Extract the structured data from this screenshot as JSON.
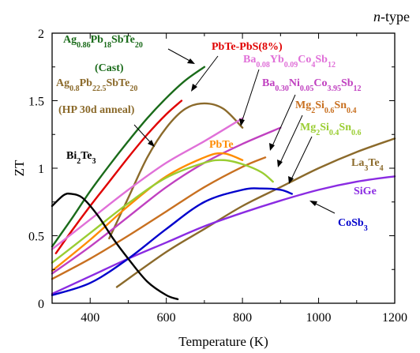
{
  "chart_data": {
    "type": "line",
    "annotation": "n-type",
    "xlabel": "Temperature (K)",
    "ylabel": "ZT",
    "xlim": [
      300,
      1200
    ],
    "ylim": [
      0,
      2
    ],
    "xticks": [
      400,
      600,
      800,
      1000,
      1200
    ],
    "yticks": [
      0,
      0.5,
      1,
      1.5,
      2
    ],
    "grid": false,
    "series": [
      {
        "name": "Ag0.86Pb18SbTe20 (Cast)",
        "color": "#1a6b1a",
        "x": [
          300,
          350,
          400,
          450,
          500,
          550,
          600,
          650,
          700
        ],
        "y": [
          0.42,
          0.62,
          0.83,
          1.02,
          1.2,
          1.37,
          1.52,
          1.65,
          1.75
        ]
      },
      {
        "name": "PbTe-PbS(8%)",
        "color": "#e00000",
        "x": [
          310,
          350,
          400,
          450,
          500,
          550,
          600,
          640
        ],
        "y": [
          0.37,
          0.53,
          0.72,
          0.9,
          1.08,
          1.25,
          1.4,
          1.5
        ]
      },
      {
        "name": "Ag0.8Pb22.5SbTe20 (HP 30d anneal)",
        "color": "#8b6a2b",
        "x": [
          450,
          500,
          550,
          600,
          650,
          700,
          750,
          800
        ],
        "y": [
          0.48,
          0.78,
          1.08,
          1.3,
          1.44,
          1.48,
          1.44,
          1.3
        ]
      },
      {
        "name": "Ba0.08Yb0.09Co4Sb12",
        "color": "#e070d8",
        "x": [
          300,
          400,
          500,
          600,
          700,
          800
        ],
        "y": [
          0.4,
          0.62,
          0.84,
          1.04,
          1.2,
          1.37
        ]
      },
      {
        "name": "Ba0.30Ni0.05Co3.95Sb12",
        "color": "#c040c0",
        "x": [
          300,
          400,
          500,
          600,
          700,
          800,
          900
        ],
        "y": [
          0.22,
          0.42,
          0.64,
          0.86,
          1.04,
          1.18,
          1.3
        ]
      },
      {
        "name": "PbTe",
        "color": "#ff8c00",
        "x": [
          300,
          400,
          500,
          600,
          700,
          750,
          800
        ],
        "y": [
          0.24,
          0.47,
          0.72,
          0.94,
          1.08,
          1.11,
          1.06
        ]
      },
      {
        "name": "Mg2Si0.6Sn0.4",
        "color": "#c87020",
        "x": [
          300,
          400,
          500,
          600,
          700,
          800,
          860
        ],
        "y": [
          0.18,
          0.33,
          0.5,
          0.68,
          0.86,
          1.01,
          1.08
        ]
      },
      {
        "name": "Mg2Si0.4Sn0.6",
        "color": "#9acd32",
        "x": [
          300,
          400,
          500,
          600,
          700,
          750,
          800,
          850,
          880
        ],
        "y": [
          0.3,
          0.52,
          0.74,
          0.93,
          1.04,
          1.06,
          1.03,
          0.97,
          0.9
        ]
      },
      {
        "name": "La3Te4",
        "color": "#8b6a2b",
        "x": [
          470,
          600,
          700,
          800,
          900,
          1000,
          1100,
          1200
        ],
        "y": [
          0.12,
          0.38,
          0.55,
          0.72,
          0.86,
          1.0,
          1.12,
          1.22
        ]
      },
      {
        "name": "SiGe",
        "color": "#8a2be2",
        "x": [
          300,
          400,
          500,
          600,
          700,
          800,
          900,
          1000,
          1100,
          1200
        ],
        "y": [
          0.07,
          0.2,
          0.33,
          0.45,
          0.57,
          0.67,
          0.76,
          0.84,
          0.9,
          0.94
        ]
      },
      {
        "name": "CoSb3",
        "color": "#0000cc",
        "x": [
          300,
          400,
          500,
          600,
          700,
          800,
          850,
          900,
          930
        ],
        "y": [
          0.06,
          0.15,
          0.33,
          0.55,
          0.75,
          0.84,
          0.85,
          0.84,
          0.81
        ]
      },
      {
        "name": "Bi2Te3",
        "color": "#000000",
        "x": [
          300,
          330,
          350,
          380,
          420,
          460,
          500,
          550,
          600,
          630
        ],
        "y": [
          0.72,
          0.8,
          0.81,
          0.78,
          0.65,
          0.48,
          0.33,
          0.16,
          0.06,
          0.03
        ]
      }
    ]
  }
}
